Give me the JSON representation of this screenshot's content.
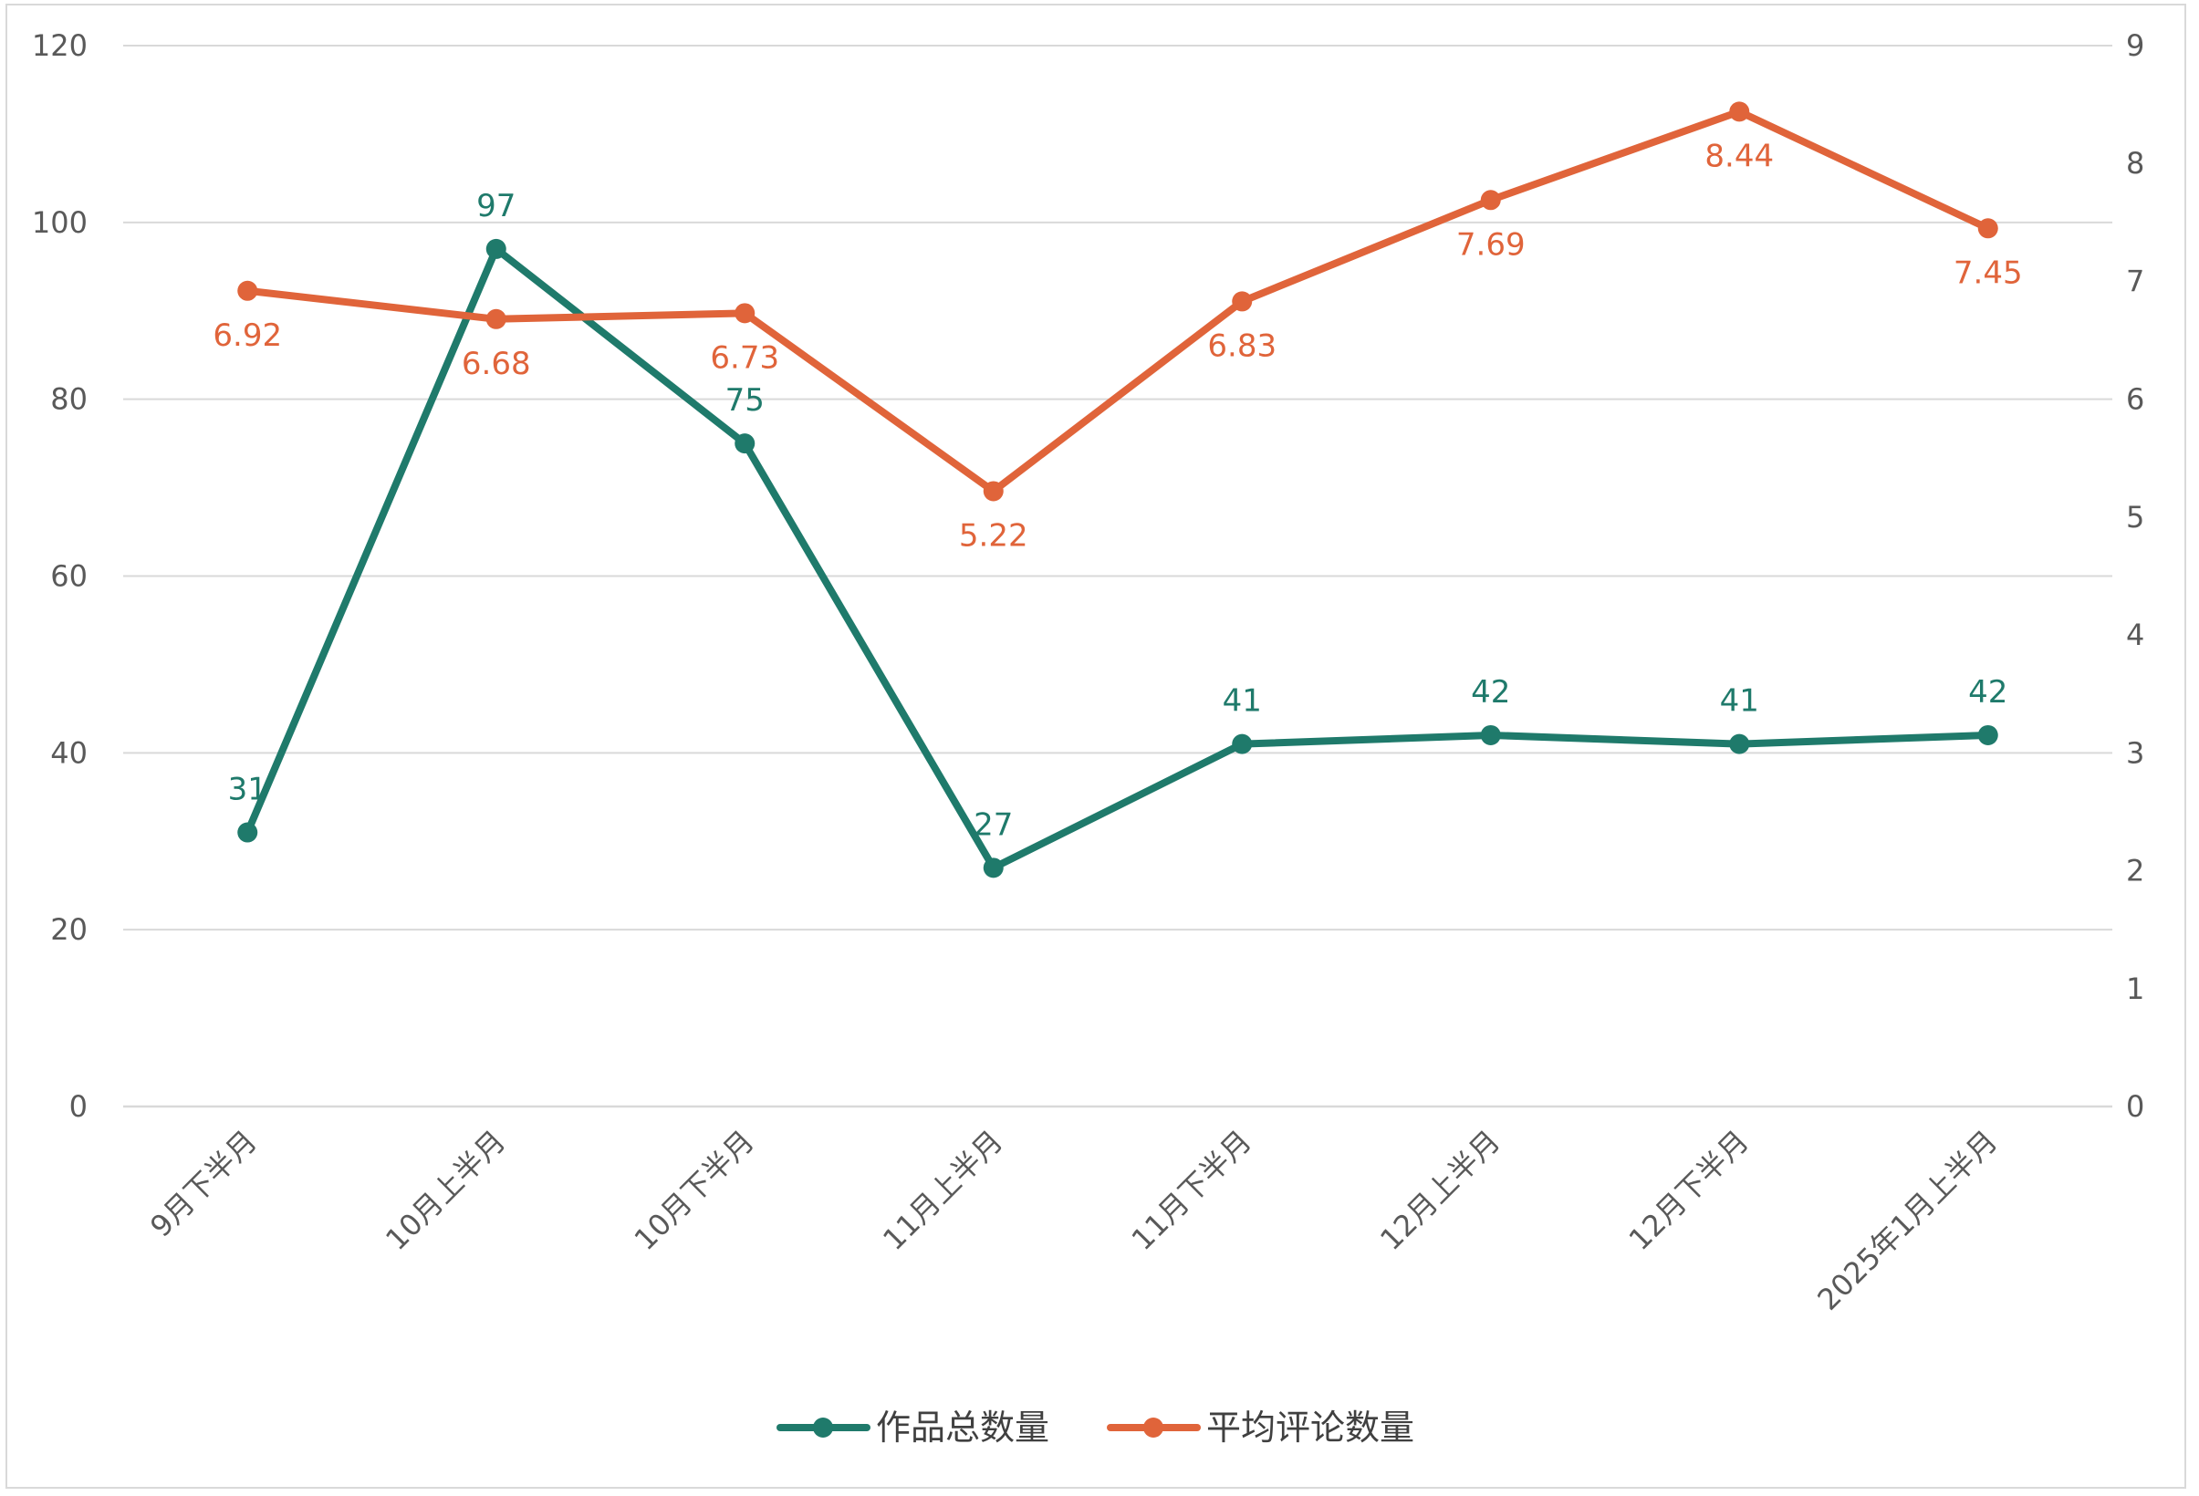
{
  "chart_data": {
    "type": "line",
    "categories": [
      "9月下半月",
      "10月上半月",
      "10月下半月",
      "11月上半月",
      "11月下半月",
      "12月上半月",
      "12月下半月",
      "2025年1月上半月"
    ],
    "series": [
      {
        "name": "作品总数量",
        "axis": "left",
        "color": "#1f7a6b",
        "values": [
          31,
          97,
          75,
          27,
          41,
          42,
          41,
          42
        ],
        "labels": [
          "31",
          "97",
          "75",
          "27",
          "41",
          "42",
          "41",
          "42"
        ],
        "label_position": "above"
      },
      {
        "name": "平均评论数量",
        "axis": "right",
        "color": "#e0643a",
        "values": [
          6.92,
          6.68,
          6.73,
          5.22,
          6.83,
          7.69,
          8.44,
          7.45
        ],
        "labels": [
          "6.92",
          "6.68",
          "6.73",
          "5.22",
          "6.83",
          "7.69",
          "8.44",
          "7.45"
        ],
        "label_position": "below"
      }
    ],
    "y_left": {
      "ylim": [
        0,
        120
      ],
      "ticks": [
        "0",
        "20",
        "40",
        "60",
        "80",
        "100",
        "120"
      ]
    },
    "y_right": {
      "ylim": [
        0,
        9
      ],
      "ticks": [
        "0",
        "1",
        "2",
        "3",
        "4",
        "5",
        "6",
        "7",
        "8",
        "9"
      ]
    },
    "grid": true,
    "legend": "bottom",
    "colors": {
      "grid": "#d9d9d9",
      "axis_text": "#595959"
    }
  }
}
